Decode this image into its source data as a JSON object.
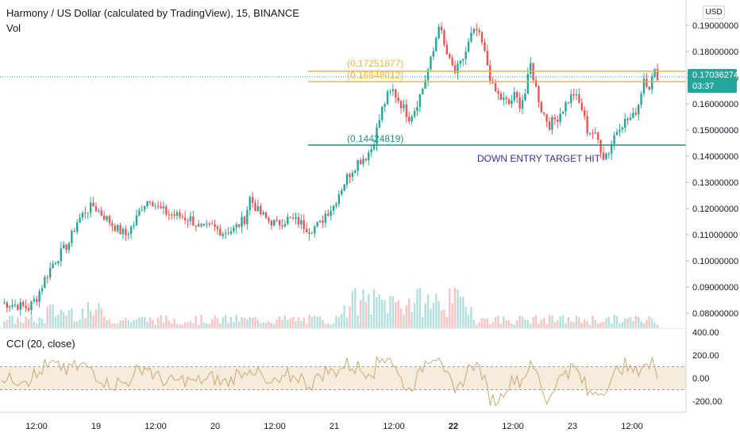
{
  "header": {
    "title": "Harmony / US Dollar (calculated by TradingView), 15, BINANCE",
    "vol_label": "Vol"
  },
  "currency_button": "USD",
  "last_price": {
    "value": "0.17036274",
    "countdown": "03:37"
  },
  "levels": [
    {
      "label": "(0.17251877)",
      "value": 0.17251877,
      "color": "#f2b53a"
    },
    {
      "label": "(0.16848012)",
      "value": 0.16848012,
      "color": "#f2b53a"
    },
    {
      "label": "(0.14424819)",
      "value": 0.14424819,
      "color": "#1a9484"
    }
  ],
  "annotation": "DOWN ENTRY TARGET HIT",
  "cci": {
    "label": "CCI (20, close)",
    "ticks": [
      "400.00",
      "200.00",
      "0.00",
      "-200.00"
    ],
    "band": [
      -100,
      100
    ],
    "ylim": [
      -300,
      420
    ]
  },
  "colors": {
    "up": "#26a69a",
    "down": "#ef5350",
    "cci_line": "#c9a877",
    "cci_band": "#f5ecdc"
  },
  "chart_data": {
    "type": "candlestick",
    "title": "Harmony / US Dollar (calculated by TradingView), 15, BINANCE",
    "x_ticks": [
      "12:00",
      "19",
      "12:00",
      "20",
      "12:00",
      "21",
      "12:00",
      "22",
      "12:00",
      "23",
      "12:00"
    ],
    "y_ticks": [
      "0.19000000",
      "0.18000000",
      "0.17000000",
      "0.16000000",
      "0.15000000",
      "0.14000000",
      "0.13000000",
      "0.12000000",
      "0.11000000",
      "0.10000000",
      "0.09000000",
      "0.08000000"
    ],
    "ylim": [
      0.075,
      0.195
    ],
    "approx_close_path": [
      [
        0,
        0.084
      ],
      [
        6,
        0.083
      ],
      [
        10,
        0.082
      ],
      [
        13,
        0.086
      ],
      [
        16,
        0.093
      ],
      [
        19,
        0.099
      ],
      [
        22,
        0.103
      ],
      [
        25,
        0.107
      ],
      [
        28,
        0.115
      ],
      [
        31,
        0.119
      ],
      [
        34,
        0.121
      ],
      [
        37,
        0.118
      ],
      [
        40,
        0.115
      ],
      [
        43,
        0.112
      ],
      [
        46,
        0.11
      ],
      [
        49,
        0.114
      ],
      [
        52,
        0.121
      ],
      [
        55,
        0.124
      ],
      [
        58,
        0.12
      ],
      [
        62,
        0.118
      ],
      [
        66,
        0.117
      ],
      [
        70,
        0.116
      ],
      [
        74,
        0.112
      ],
      [
        78,
        0.113
      ],
      [
        82,
        0.111
      ],
      [
        86,
        0.112
      ],
      [
        90,
        0.116
      ],
      [
        92,
        0.124
      ],
      [
        95,
        0.119
      ],
      [
        98,
        0.116
      ],
      [
        102,
        0.114
      ],
      [
        106,
        0.116
      ],
      [
        110,
        0.115
      ],
      [
        114,
        0.112
      ],
      [
        118,
        0.114
      ],
      [
        120,
        0.118
      ],
      [
        123,
        0.121
      ],
      [
        125,
        0.126
      ],
      [
        128,
        0.132
      ],
      [
        132,
        0.138
      ],
      [
        135,
        0.14
      ],
      [
        137,
        0.143
      ],
      [
        139,
        0.15
      ],
      [
        141,
        0.158
      ],
      [
        143,
        0.163
      ],
      [
        145,
        0.165
      ],
      [
        148,
        0.16
      ],
      [
        151,
        0.155
      ],
      [
        153,
        0.158
      ],
      [
        156,
        0.166
      ],
      [
        158,
        0.173
      ],
      [
        160,
        0.18
      ],
      [
        162,
        0.191
      ],
      [
        164,
        0.182
      ],
      [
        166,
        0.176
      ],
      [
        168,
        0.172
      ],
      [
        170,
        0.175
      ],
      [
        172,
        0.18
      ],
      [
        174,
        0.186
      ],
      [
        176,
        0.188
      ],
      [
        178,
        0.183
      ],
      [
        180,
        0.175
      ],
      [
        182,
        0.166
      ],
      [
        185,
        0.162
      ],
      [
        188,
        0.16
      ],
      [
        190,
        0.163
      ],
      [
        192,
        0.16
      ],
      [
        194,
        0.164
      ],
      [
        196,
        0.175
      ],
      [
        198,
        0.166
      ],
      [
        200,
        0.158
      ],
      [
        203,
        0.152
      ],
      [
        206,
        0.155
      ],
      [
        209,
        0.16
      ],
      [
        212,
        0.164
      ],
      [
        215,
        0.158
      ],
      [
        217,
        0.15
      ],
      [
        219,
        0.149
      ],
      [
        221,
        0.146
      ],
      [
        223,
        0.14
      ],
      [
        225,
        0.142
      ],
      [
        227,
        0.148
      ],
      [
        229,
        0.152
      ],
      [
        232,
        0.154
      ],
      [
        234,
        0.155
      ],
      [
        236,
        0.16
      ],
      [
        238,
        0.17
      ],
      [
        240,
        0.167
      ],
      [
        242,
        0.172
      ],
      [
        243,
        0.171
      ]
    ],
    "volume_series": "Vol",
    "volume_max_relative": 1.0
  }
}
